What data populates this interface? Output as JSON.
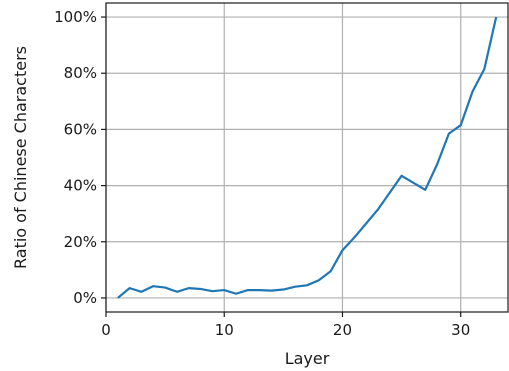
{
  "chart_data": {
    "type": "line",
    "title": "",
    "xlabel": "Layer",
    "ylabel": "Ratio of Chinese Characters",
    "xlim": [
      0,
      34
    ],
    "ylim": [
      -0.05,
      1.05
    ],
    "xticks": [
      0,
      10,
      20,
      30
    ],
    "xtick_labels": [
      "0",
      "10",
      "20",
      "30"
    ],
    "yticks": [
      0,
      0.2,
      0.4,
      0.6,
      0.8,
      1.0
    ],
    "ytick_labels": [
      "0%",
      "20%",
      "40%",
      "60%",
      "80%",
      "100%"
    ],
    "grid": true,
    "legend": "none",
    "series": [
      {
        "color": "#1f77b4",
        "x": [
          1,
          2,
          3,
          4,
          5,
          6,
          7,
          8,
          9,
          10,
          11,
          12,
          13,
          14,
          15,
          16,
          17,
          18,
          19,
          20,
          21,
          22,
          23,
          24,
          25,
          26,
          27,
          28,
          29,
          30,
          31,
          32,
          33
        ],
        "y": [
          0.0,
          0.035,
          0.022,
          0.042,
          0.037,
          0.022,
          0.035,
          0.032,
          0.024,
          0.028,
          0.015,
          0.028,
          0.028,
          0.026,
          0.03,
          0.04,
          0.045,
          0.063,
          0.095,
          0.17,
          0.215,
          0.265,
          0.315,
          0.375,
          0.435,
          0.41,
          0.385,
          0.475,
          0.585,
          0.615,
          0.735,
          0.815,
          1.0
        ]
      }
    ]
  }
}
